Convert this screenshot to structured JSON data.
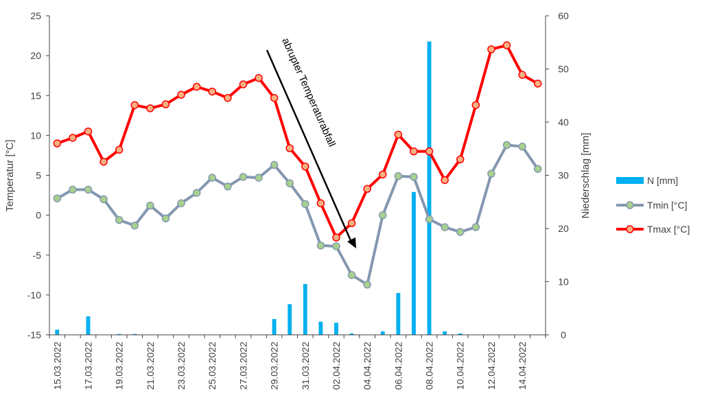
{
  "chart_data": {
    "type": "line",
    "categories": [
      "15.03.2022",
      "16.03.2022",
      "17.03.2022",
      "18.03.2022",
      "19.03.2022",
      "20.03.2022",
      "21.03.2022",
      "22.03.2022",
      "23.03.2022",
      "24.03.2022",
      "25.03.2022",
      "26.03.2022",
      "27.03.2022",
      "28.03.2022",
      "29.03.2022",
      "30.03.2022",
      "31.03.2022",
      "01.04.2022",
      "02.04.2022",
      "03.04.2022",
      "04.04.2022",
      "05.04.2022",
      "06.04.2022",
      "07.04.2022",
      "08.04.2022",
      "09.04.2022",
      "10.04.2022",
      "11.04.2022",
      "12.04.2022",
      "13.04.2022",
      "14.04.2022",
      "15.04.2022"
    ],
    "x_tick_labels": [
      "15.03.2022",
      "17.03.2022",
      "19.03.2022",
      "21.03.2022",
      "23.03.2022",
      "25.03.2022",
      "27.03.2022",
      "29.03.2022",
      "31.03.2022",
      "02.04.2022",
      "04.04.2022",
      "06.04.2022",
      "08.04.2022",
      "10.04.2022",
      "12.04.2022",
      "14.04.2022"
    ],
    "series": [
      {
        "name": "N [mm]",
        "type": "bar",
        "axis": "right",
        "color": "#00b0f0",
        "values": [
          1.0,
          0,
          3.5,
          0,
          0.2,
          0.2,
          0,
          0,
          0,
          0,
          0,
          0,
          0,
          0,
          3.0,
          5.8,
          9.6,
          2.5,
          2.3,
          0.3,
          0,
          0.7,
          7.9,
          26.9,
          55.2,
          0.7,
          0.3,
          0,
          0,
          0,
          0,
          0
        ]
      },
      {
        "name": "Tmin [°C]",
        "type": "line",
        "axis": "left",
        "color": "#8497b0",
        "marker_fill": "#a9d18e",
        "values": [
          2.1,
          3.2,
          3.2,
          2.0,
          -0.6,
          -1.3,
          1.2,
          -0.4,
          1.5,
          2.8,
          4.7,
          3.6,
          4.8,
          4.7,
          6.3,
          4.0,
          1.4,
          -3.8,
          -3.9,
          -7.5,
          -8.7,
          0.0,
          4.9,
          4.8,
          -0.5,
          -1.5,
          -2.1,
          -1.5,
          5.2,
          8.8,
          8.6,
          5.8
        ]
      },
      {
        "name": "Tmax [°C]",
        "type": "line",
        "axis": "left",
        "color": "#ff0000",
        "marker_fill": "#f4b183",
        "values": [
          9.0,
          9.7,
          10.5,
          6.7,
          8.2,
          13.8,
          13.4,
          13.9,
          15.1,
          16.1,
          15.5,
          14.7,
          16.4,
          17.2,
          14.7,
          8.4,
          6.1,
          1.5,
          -2.8,
          -1.0,
          3.3,
          5.1,
          10.1,
          8.0,
          8.0,
          4.4,
          7.0,
          13.8,
          20.8,
          21.3,
          17.6,
          16.5
        ]
      }
    ],
    "ylabel": "Temperatur [°C]",
    "ylim": [
      -15,
      25
    ],
    "yticks": [
      -15,
      -10,
      -5,
      0,
      5,
      10,
      15,
      20,
      25
    ],
    "ylabel_right": "Niederschlag [mm]",
    "ylim_right": [
      0,
      60
    ],
    "yticks_right": [
      0,
      10,
      20,
      30,
      40,
      50,
      60
    ],
    "annotation": "abrupter Temperaturabfall",
    "legend_position": "right",
    "grid": false
  }
}
